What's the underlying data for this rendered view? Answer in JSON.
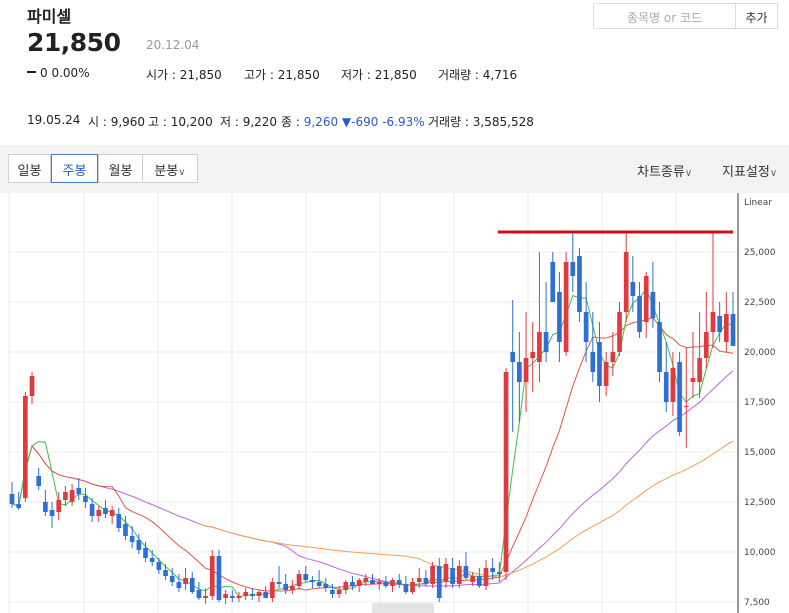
{
  "stock": {
    "name": "파미셀",
    "price": "21,850",
    "date": "20.12.04",
    "change_amount": "0",
    "change_pct": "0.00%",
    "open": "시가 : 21,850",
    "high": "고가 : 21,850",
    "low": "저가 : 21,850",
    "volume": "거래량 : 4,716"
  },
  "search": {
    "placeholder": "종목명 or 코드",
    "add_label": "추가"
  },
  "history": {
    "date": "19.05.24",
    "open": "시 : 9,960",
    "high": "고 : 10,200",
    "low": "저 : 9,220",
    "close_label": "종 :",
    "close": "9,260",
    "change": "▼-690",
    "change_pct": "-6.93%",
    "volume": "거래량 : 3,585,528"
  },
  "toolbar": {
    "tabs": [
      "일봉",
      "주봉",
      "월봉",
      "분봉"
    ],
    "active_tab": "주봉",
    "chart_type": "차트종류",
    "indicators": "지표설정"
  },
  "chart_data": {
    "type": "candlestick",
    "scale_label": "Linear",
    "y_ticks": [
      "25,000",
      "22,500",
      "20,000",
      "17,500",
      "15,000",
      "12,500",
      "10,000",
      "7,500"
    ],
    "y_tick_values": [
      25000,
      22500,
      20000,
      17500,
      15000,
      12500,
      10000,
      7500
    ],
    "ylim": [
      7200,
      27600
    ],
    "resistance_line": 26000,
    "colors": {
      "up": "#e03a3e",
      "down": "#2d6fd6",
      "ma5": "#3fbf4b",
      "ma20": "#e0574a",
      "ma60": "#b869e0",
      "ma120": "#f0a050",
      "resistance": "#cc1111"
    },
    "candles": [
      [
        12900,
        13500,
        12200,
        12400
      ],
      [
        12400,
        13000,
        12100,
        12200
      ],
      [
        12700,
        18000,
        12500,
        17800
      ],
      [
        17800,
        19000,
        17400,
        18800
      ],
      [
        13800,
        14200,
        13100,
        13300
      ],
      [
        12500,
        13100,
        11800,
        12000
      ],
      [
        12100,
        12500,
        11200,
        11800
      ],
      [
        12000,
        13000,
        11600,
        12600
      ],
      [
        12600,
        13300,
        12300,
        13000
      ],
      [
        12500,
        13400,
        12300,
        13100
      ],
      [
        13200,
        13700,
        12600,
        12900
      ],
      [
        12800,
        13200,
        12200,
        12500
      ],
      [
        12400,
        12700,
        11500,
        11800
      ],
      [
        11800,
        12300,
        11500,
        12100
      ],
      [
        12200,
        12600,
        11700,
        11900
      ],
      [
        11800,
        12300,
        11400,
        12100
      ],
      [
        11900,
        12200,
        11000,
        11200
      ],
      [
        11400,
        11800,
        10600,
        10800
      ],
      [
        10800,
        11300,
        10200,
        10500
      ],
      [
        10600,
        10900,
        9900,
        10100
      ],
      [
        10200,
        10500,
        9500,
        9700
      ],
      [
        9700,
        10100,
        9300,
        9500
      ],
      [
        9500,
        9700,
        8900,
        9100
      ],
      [
        9100,
        9400,
        8600,
        8800
      ],
      [
        8800,
        9200,
        8300,
        8500
      ],
      [
        8500,
        8900,
        8000,
        8200
      ],
      [
        8400,
        9200,
        8100,
        8700
      ],
      [
        8700,
        9000,
        7900,
        8000
      ],
      [
        8100,
        8500,
        7600,
        7700
      ],
      [
        7700,
        8200,
        7400,
        7800
      ],
      [
        7800,
        10100,
        7600,
        9800
      ],
      [
        9800,
        10100,
        7500,
        7600
      ],
      [
        7700,
        8100,
        7400,
        7900
      ],
      [
        7800,
        8100,
        7500,
        7700
      ],
      [
        7700,
        8000,
        7500,
        7800
      ],
      [
        7800,
        8200,
        7600,
        8000
      ],
      [
        7900,
        8200,
        7600,
        7800
      ],
      [
        7800,
        8100,
        7500,
        8000
      ],
      [
        8000,
        8300,
        7700,
        7700
      ],
      [
        7700,
        8700,
        7500,
        8500
      ],
      [
        8500,
        9300,
        8200,
        8400
      ],
      [
        8400,
        8900,
        7900,
        8100
      ],
      [
        8100,
        8600,
        7900,
        8300
      ],
      [
        8300,
        9100,
        8100,
        8900
      ],
      [
        8900,
        9300,
        8500,
        8600
      ],
      [
        8600,
        8800,
        8200,
        8500
      ],
      [
        8500,
        9100,
        8200,
        8300
      ],
      [
        8400,
        8700,
        8000,
        8200
      ],
      [
        8100,
        8400,
        7700,
        7900
      ],
      [
        7900,
        8300,
        7700,
        8100
      ],
      [
        8100,
        8600,
        7900,
        8500
      ],
      [
        8500,
        8800,
        8100,
        8300
      ],
      [
        8300,
        8700,
        8000,
        8600
      ],
      [
        8500,
        8900,
        8300,
        8700
      ],
      [
        8600,
        8900,
        8400,
        8400
      ],
      [
        8400,
        8700,
        8100,
        8500
      ],
      [
        8500,
        8800,
        8200,
        8300
      ],
      [
        8300,
        8700,
        8000,
        8600
      ],
      [
        8600,
        8900,
        8200,
        8400
      ],
      [
        8400,
        8800,
        7900,
        8000
      ],
      [
        8000,
        8700,
        7900,
        8500
      ],
      [
        8500,
        9200,
        8200,
        8700
      ],
      [
        8700,
        9100,
        8300,
        8400
      ],
      [
        8400,
        9500,
        8200,
        9300
      ],
      [
        9300,
        9700,
        7500,
        7700
      ],
      [
        8500,
        9700,
        8200,
        9400
      ],
      [
        9200,
        9700,
        8200,
        8400
      ],
      [
        8400,
        9600,
        8200,
        9300
      ],
      [
        9300,
        10000,
        8600,
        8700
      ],
      [
        8500,
        9000,
        8300,
        8800
      ],
      [
        8800,
        9200,
        8200,
        8300
      ],
      [
        8300,
        9600,
        8100,
        9200
      ],
      [
        9200,
        9700,
        8600,
        9000
      ],
      [
        9000,
        9500,
        8500,
        8900
      ],
      [
        9000,
        19200,
        8600,
        19000
      ],
      [
        20000,
        22600,
        16000,
        19500
      ],
      [
        19500,
        21000,
        16500,
        18500
      ],
      [
        18500,
        22000,
        17000,
        19700
      ],
      [
        19700,
        21500,
        18000,
        20000
      ],
      [
        19500,
        25000,
        18500,
        21000
      ],
      [
        21000,
        23500,
        19500,
        20000
      ],
      [
        24500,
        25000,
        22500,
        22500
      ],
      [
        23000,
        24000,
        19500,
        20500
      ],
      [
        20000,
        25000,
        19800,
        24500
      ],
      [
        24500,
        26000,
        23000,
        23800
      ],
      [
        24800,
        25200,
        21500,
        22000
      ],
      [
        22000,
        23500,
        19500,
        20500
      ],
      [
        20000,
        22000,
        18500,
        19000
      ],
      [
        20500,
        21500,
        17500,
        18300
      ],
      [
        18300,
        20000,
        17800,
        19500
      ],
      [
        19500,
        21000,
        18800,
        20000
      ],
      [
        20000,
        22500,
        19800,
        22000
      ],
      [
        22000,
        26000,
        21500,
        25000
      ],
      [
        23500,
        24800,
        22000,
        22800
      ],
      [
        22800,
        23500,
        20700,
        21000
      ],
      [
        21500,
        24000,
        20700,
        23800
      ],
      [
        23000,
        24500,
        21200,
        21700
      ],
      [
        21500,
        22500,
        18500,
        19000
      ],
      [
        19000,
        20500,
        17000,
        17500
      ],
      [
        17500,
        20000,
        16800,
        19200
      ],
      [
        19500,
        20000,
        15800,
        16000
      ],
      [
        17300,
        20200,
        15200,
        17300
      ],
      [
        18500,
        21000,
        17700,
        18700
      ],
      [
        18500,
        22000,
        17700,
        19700
      ],
      [
        19700,
        23000,
        19200,
        21000
      ],
      [
        21000,
        26000,
        20200,
        22000
      ],
      [
        21800,
        22500,
        20500,
        21000
      ],
      [
        20500,
        23000,
        20000,
        21900
      ],
      [
        21900,
        23000,
        20500,
        20300
      ]
    ]
  }
}
